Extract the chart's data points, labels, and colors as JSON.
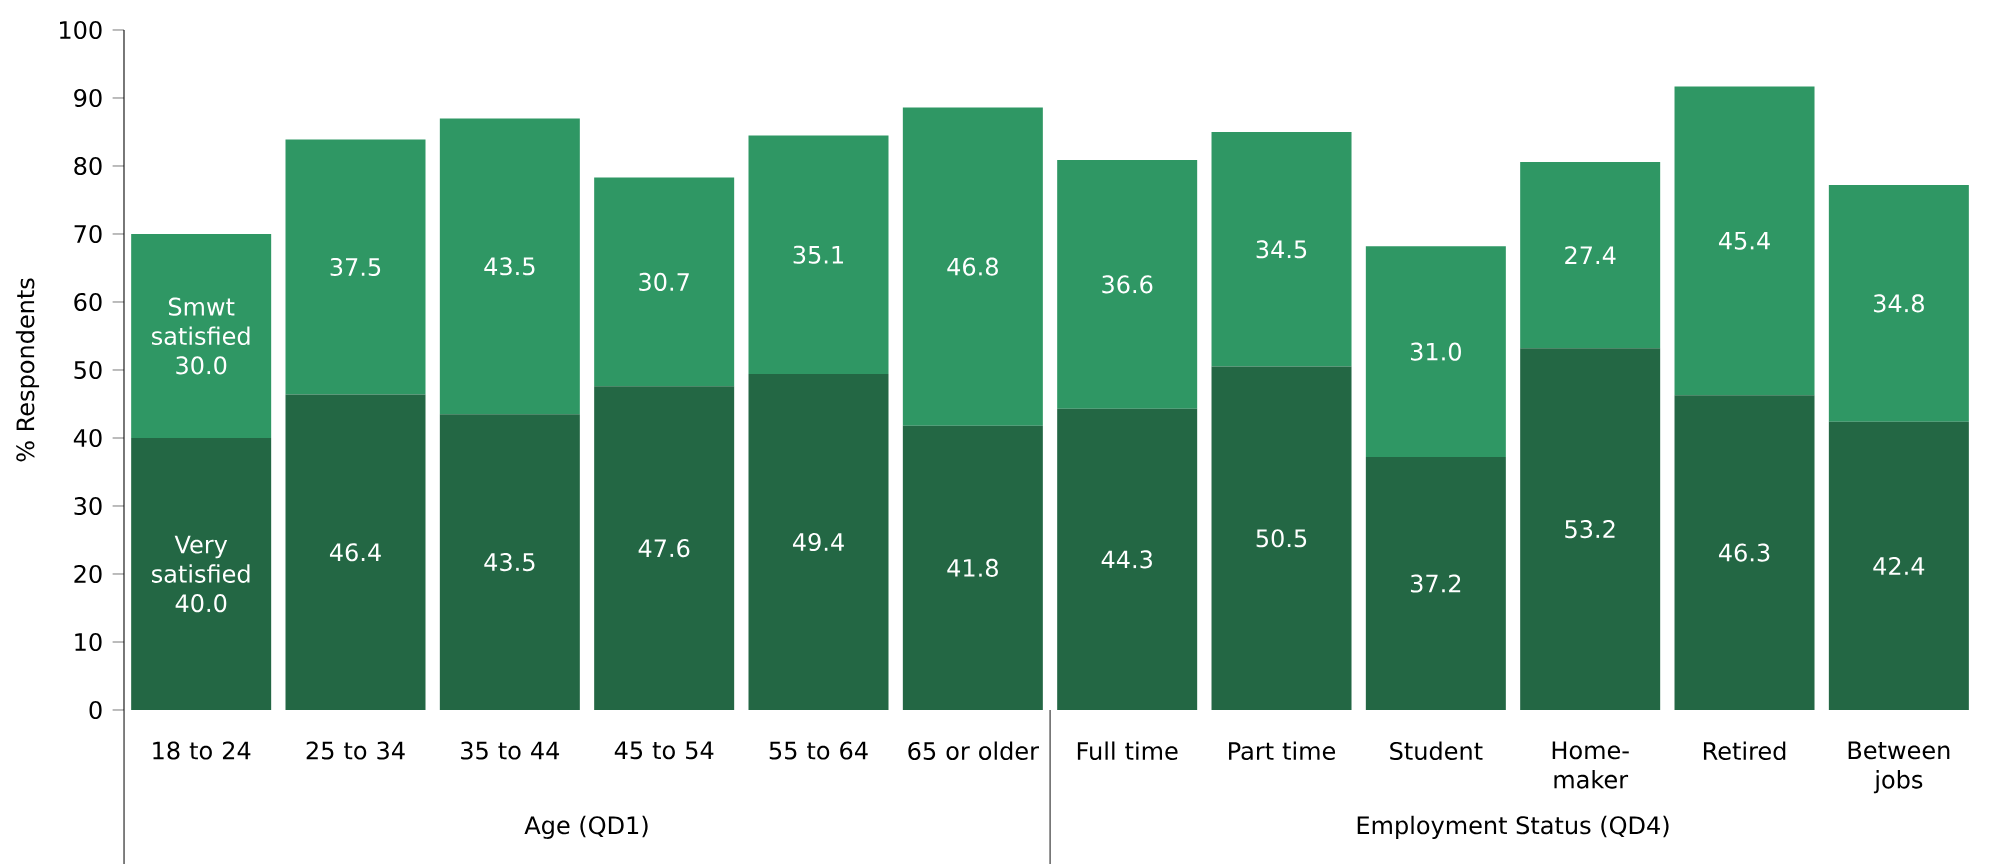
{
  "chart_data": {
    "type": "bar",
    "stacked": true,
    "ylabel": "% Respondents",
    "categories": [
      "18 to 24",
      "25 to 34",
      "35 to 44",
      "45 to 54",
      "55 to 64",
      "65 or older",
      "Full time",
      "Part time",
      "Student",
      "Home-maker",
      "Retired",
      "Between jobs"
    ],
    "series": [
      {
        "name": "Very satisfied",
        "color": "#236744",
        "values": [
          40.0,
          46.4,
          43.5,
          47.6,
          49.4,
          41.8,
          44.3,
          50.5,
          37.2,
          53.2,
          46.3,
          42.4
        ],
        "value_labels": [
          "40.0",
          "46.4",
          "43.5",
          "47.6",
          "49.4",
          "41.8",
          "44.3",
          "50.5",
          "37.2",
          "53.2",
          "46.3",
          "42.4"
        ]
      },
      {
        "name": "Smwt satisfied",
        "color": "#2f9764",
        "values": [
          30.0,
          37.5,
          43.5,
          30.7,
          35.1,
          46.8,
          36.6,
          34.5,
          31.0,
          27.4,
          45.4,
          34.8
        ],
        "value_labels": [
          "30.0",
          "37.5",
          "43.5",
          "30.7",
          "35.1",
          "46.8",
          "36.6",
          "34.5",
          "31.0",
          "27.4",
          "45.4",
          "34.8"
        ]
      }
    ],
    "ylim": [
      0,
      100
    ],
    "yticks": [
      0,
      10,
      20,
      30,
      40,
      50,
      60,
      70,
      80,
      90,
      100
    ],
    "annotations": [
      "Age (QD1)",
      "Employment Status (QD4)"
    ]
  }
}
